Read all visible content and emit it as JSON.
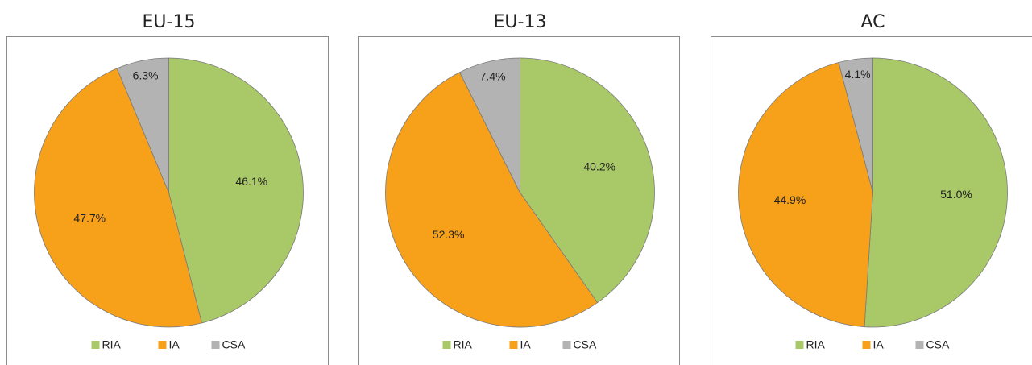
{
  "chart_data": [
    {
      "type": "pie",
      "title": "EU-15",
      "categories": [
        "RIA",
        "IA",
        "CSA"
      ],
      "values": [
        46.1,
        47.7,
        6.3
      ],
      "value_labels": [
        "46.1%",
        "47.7%",
        "6.3%"
      ],
      "colors": [
        "#a9c868",
        "#f7a11b",
        "#b3b3b3"
      ],
      "legend": "bottom"
    },
    {
      "type": "pie",
      "title": "EU-13",
      "categories": [
        "RIA",
        "IA",
        "CSA"
      ],
      "values": [
        40.2,
        52.3,
        7.4
      ],
      "value_labels": [
        "40.2%",
        "52.3%",
        "7.4%"
      ],
      "colors": [
        "#a9c868",
        "#f7a11b",
        "#b3b3b3"
      ],
      "legend": "bottom"
    },
    {
      "type": "pie",
      "title": "AC",
      "categories": [
        "RIA",
        "IA",
        "CSA"
      ],
      "values": [
        51.0,
        44.9,
        4.1
      ],
      "value_labels": [
        "51.0%",
        "44.9%",
        "4.1%"
      ],
      "colors": [
        "#a9c868",
        "#f7a11b",
        "#b3b3b3"
      ],
      "legend": "bottom"
    }
  ]
}
